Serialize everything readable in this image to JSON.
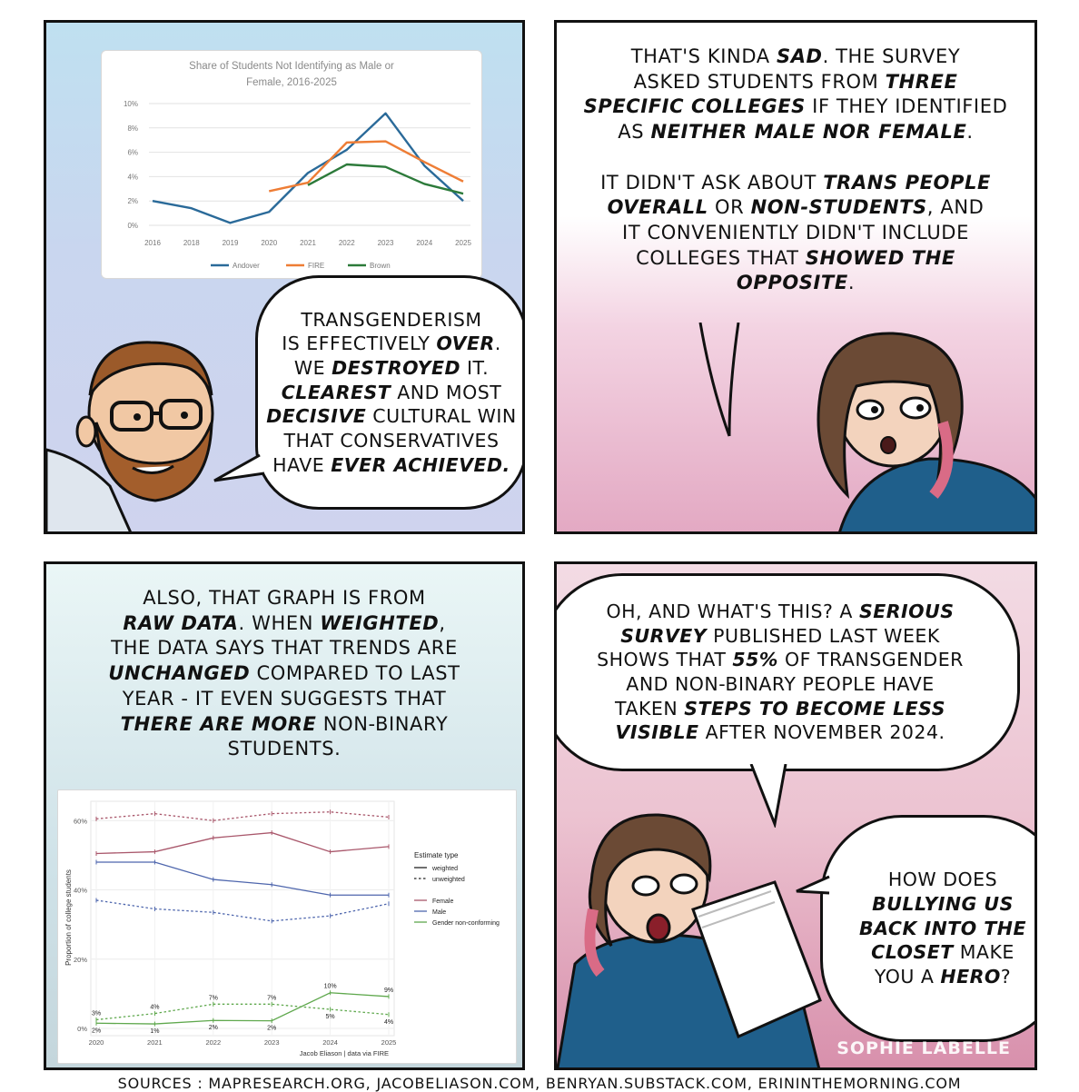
{
  "panel1": {
    "chart_title_line1": "Share of Students Not Identifying as Male or",
    "chart_title_line2": "Female, 2016-2025",
    "bubble_lines": [
      [
        "TRANSGENDERISM"
      ],
      [
        "IS EFFECTIVELY ",
        {
          "b": "OVER"
        },
        "."
      ],
      [
        "WE ",
        {
          "b": "DESTROYED"
        },
        " IT."
      ],
      [
        {
          "b": "CLEAREST"
        },
        " AND MOST"
      ],
      [
        {
          "b": "DECISIVE"
        },
        " CULTURAL WIN"
      ],
      [
        "THAT CONSERVATIVES"
      ],
      [
        "HAVE ",
        {
          "b": "EVER ACHIEVED."
        }
      ]
    ]
  },
  "panel2": {
    "caption_lines": [
      [
        "THAT'S KINDA ",
        {
          "b": "SAD"
        },
        ". THE SURVEY"
      ],
      [
        "ASKED STUDENTS FROM ",
        {
          "b": "THREE"
        }
      ],
      [
        {
          "b": "SPECIFIC COLLEGES"
        },
        " IF THEY IDENTIFIED"
      ],
      [
        "AS ",
        {
          "b": "NEITHER MALE NOR FEMALE"
        },
        "."
      ],
      [
        ""
      ],
      [
        "IT DIDN'T ASK ABOUT ",
        {
          "b": "TRANS PEOPLE"
        }
      ],
      [
        {
          "b": "OVERALL"
        },
        " OR ",
        {
          "b": "NON-STUDENTS"
        },
        ", AND"
      ],
      [
        "IT CONVENIENTLY DIDN'T INCLUDE"
      ],
      [
        "COLLEGES THAT ",
        {
          "b": "SHOWED THE"
        }
      ],
      [
        {
          "b": "OPPOSITE"
        },
        "."
      ]
    ]
  },
  "panel3": {
    "caption_lines": [
      [
        "ALSO, THAT GRAPH IS FROM"
      ],
      [
        {
          "b": "RAW DATA"
        },
        ". WHEN ",
        {
          "b": "WEIGHTED"
        },
        ","
      ],
      [
        "THE DATA SAYS THAT TRENDS ARE"
      ],
      [
        {
          "b": "UNCHANGED"
        },
        " COMPARED TO LAST"
      ],
      [
        "YEAR - IT EVEN SUGGESTS THAT"
      ],
      [
        {
          "b": "THERE ARE MORE"
        },
        " NON-BINARY"
      ],
      [
        "STUDENTS."
      ]
    ]
  },
  "panel4": {
    "bubble1_lines": [
      [
        "OH, AND WHAT'S THIS? A ",
        {
          "b": "SERIOUS"
        }
      ],
      [
        {
          "b": "SURVEY"
        },
        " PUBLISHED LAST WEEK"
      ],
      [
        "SHOWS THAT ",
        {
          "b": "55%"
        },
        " OF TRANSGENDER"
      ],
      [
        "AND NON-BINARY PEOPLE HAVE"
      ],
      [
        "TAKEN ",
        {
          "b": "STEPS TO BECOME LESS"
        }
      ],
      [
        {
          "b": "VISIBLE"
        },
        " AFTER NOVEMBER 2024."
      ]
    ],
    "bubble2_lines": [
      [
        "HOW DOES"
      ],
      [
        {
          "b": "BULLYING US"
        }
      ],
      [
        {
          "b": "BACK INTO THE"
        }
      ],
      [
        {
          "b": "CLOSET"
        },
        " MAKE"
      ],
      [
        "YOU A ",
        {
          "b": "HERO"
        },
        "?"
      ]
    ],
    "signature": "SOPHIE LABELLE"
  },
  "sources": "SOURCES : MAPRESEARCH.ORG, JACOBELIASON.COM, BENRYAN.SUBSTACK.COM, ERININTHEMORNING.COM",
  "chart_data": [
    {
      "type": "line",
      "title": "Share of Students Not Identifying as Male or Female, 2016-2025",
      "xlabel": "",
      "ylabel": "",
      "x": [
        2016,
        2018,
        2019,
        2020,
        2021,
        2022,
        2023,
        2024,
        2025
      ],
      "y_ticks": [
        "0%",
        "2%",
        "4%",
        "6%",
        "8%",
        "10%"
      ],
      "ylim": [
        0,
        10
      ],
      "grid": true,
      "legend_position": "bottom",
      "series": [
        {
          "name": "Andover",
          "color": "#2a6a99",
          "x": [
            2016,
            2018,
            2019,
            2020,
            2021,
            2022,
            2023,
            2024,
            2025
          ],
          "values": [
            2.0,
            1.4,
            0.2,
            1.1,
            4.3,
            6.2,
            9.2,
            4.9,
            2.0
          ]
        },
        {
          "name": "FIRE",
          "color": "#ee7d35",
          "x": [
            2020,
            2021,
            2022,
            2023,
            2024,
            2025
          ],
          "values": [
            2.8,
            3.5,
            6.8,
            6.9,
            5.2,
            3.6
          ]
        },
        {
          "name": "Brown",
          "color": "#2c7a3a",
          "x": [
            2021,
            2022,
            2023,
            2024,
            2025
          ],
          "values": [
            3.3,
            5.0,
            4.8,
            3.4,
            2.6
          ]
        }
      ]
    },
    {
      "type": "line",
      "title": "",
      "xlabel": "Jacob Eliason | data via FIRE",
      "ylabel": "Proportion of college students",
      "x": [
        2020,
        2021,
        2022,
        2023,
        2024,
        2025
      ],
      "y_ticks": [
        "0%",
        "20%",
        "40%",
        "60%"
      ],
      "ylim": [
        0,
        64
      ],
      "legend_title": "Estimate type",
      "legend_entries": [
        "weighted",
        "unweighted",
        "Female",
        "Male",
        "Gender non-conforming"
      ],
      "legend_position": "right",
      "series": [
        {
          "name": "Female",
          "estimate": "weighted",
          "color": "#a9576b",
          "values": [
            50.5,
            51,
            55,
            56.5,
            51,
            52.5
          ]
        },
        {
          "name": "Female",
          "estimate": "unweighted",
          "color": "#a9576b",
          "values": [
            60.5,
            62,
            60,
            62,
            62.5,
            61
          ]
        },
        {
          "name": "Male",
          "estimate": "weighted",
          "color": "#4e66ad",
          "values": [
            48,
            48,
            43,
            41.5,
            38.5,
            38.5
          ]
        },
        {
          "name": "Male",
          "estimate": "unweighted",
          "color": "#4e66ad",
          "values": [
            37,
            34.5,
            33.5,
            31,
            32.5,
            36
          ]
        },
        {
          "name": "Gender non-conforming",
          "estimate": "weighted",
          "color": "#5fa84d",
          "values": [
            1.5,
            1.3,
            2.3,
            2.2,
            10.3,
            9.2
          ]
        },
        {
          "name": "Gender non-conforming",
          "estimate": "unweighted",
          "color": "#5fa84d",
          "values": [
            2.5,
            4.3,
            7,
            7,
            5.5,
            4
          ]
        }
      ],
      "data_labels": [
        {
          "year": 2020,
          "text": "3%"
        },
        {
          "year": 2020,
          "text": "2%"
        },
        {
          "year": 2021,
          "text": "4%"
        },
        {
          "year": 2021,
          "text": "1%"
        },
        {
          "year": 2022,
          "text": "7%"
        },
        {
          "year": 2022,
          "text": "2%"
        },
        {
          "year": 2023,
          "text": "7%"
        },
        {
          "year": 2023,
          "text": "2%"
        },
        {
          "year": 2024,
          "text": "10%"
        },
        {
          "year": 2024,
          "text": "5%"
        },
        {
          "year": 2025,
          "text": "9%"
        },
        {
          "year": 2025,
          "text": "4%"
        }
      ]
    }
  ]
}
